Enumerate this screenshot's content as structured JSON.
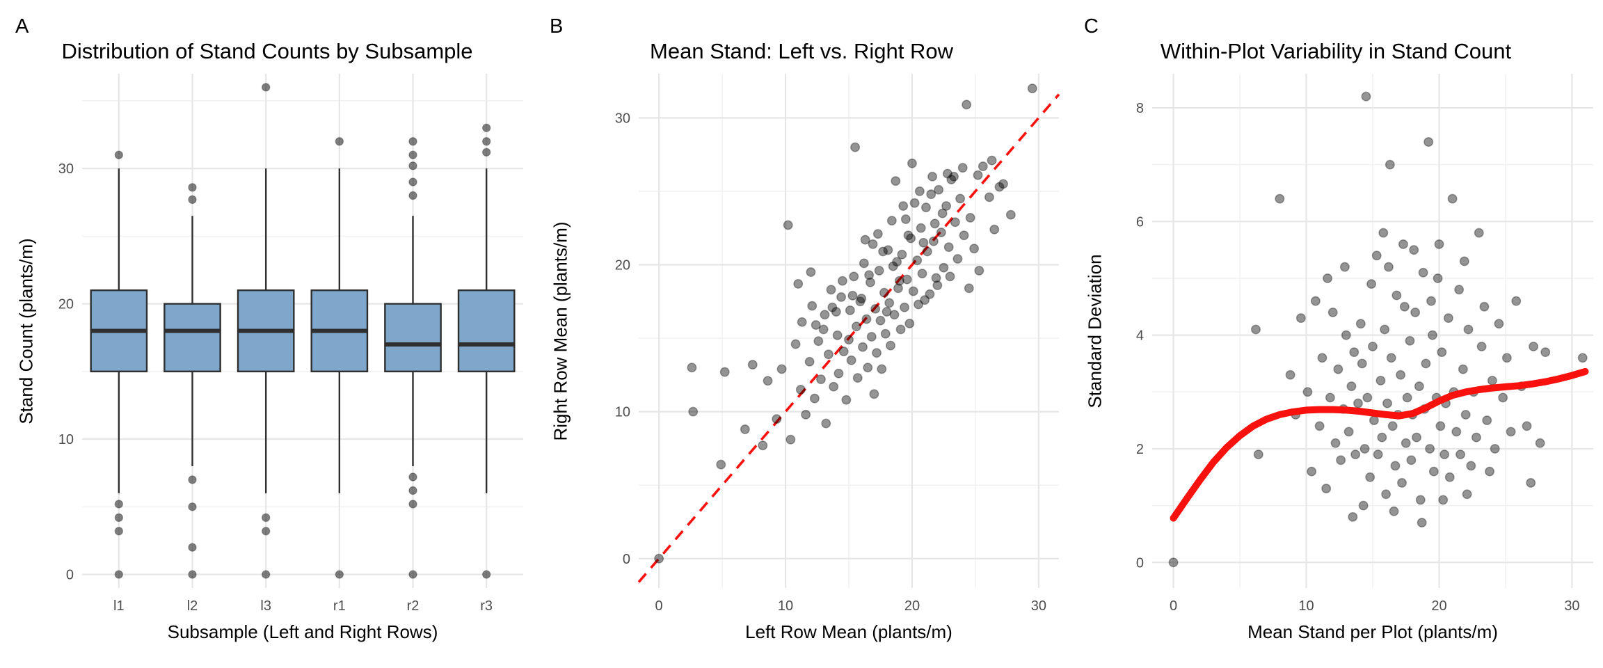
{
  "style": {
    "background": "#FFFFFF",
    "grid_major": "#E6E6E6",
    "grid_minor": "#F1F1F1",
    "tick_color": "#4D4D4D",
    "box_fill": "#7EA7CB",
    "box_border": "#2F2F2F",
    "point_color": "#000000",
    "accent_red": "#F8110D"
  },
  "chart_data": [
    {
      "type": "box",
      "tag": "A",
      "title": "Distribution of Stand Counts by Subsample",
      "xlabel": "Subsample (Left and Right Rows)",
      "ylabel": "Stand Count (plants/m)",
      "categories": [
        "l1",
        "l2",
        "l3",
        "r1",
        "r2",
        "r3"
      ],
      "stats": [
        {
          "whislo": 6,
          "q1": 15,
          "med": 18,
          "q3": 21,
          "whishi": 30,
          "fliers": [
            31,
            5.2,
            4.2,
            3.2,
            0
          ]
        },
        {
          "whislo": 8,
          "q1": 15,
          "med": 18,
          "q3": 20,
          "whishi": 26.5,
          "fliers": [
            28.6,
            27.7,
            7,
            5,
            2,
            0
          ]
        },
        {
          "whislo": 6,
          "q1": 15,
          "med": 18,
          "q3": 21,
          "whishi": 30,
          "fliers": [
            36,
            4.2,
            3.2,
            0
          ]
        },
        {
          "whislo": 6,
          "q1": 15,
          "med": 18,
          "q3": 21,
          "whishi": 30,
          "fliers": [
            32,
            0
          ]
        },
        {
          "whislo": 8,
          "q1": 15,
          "med": 17,
          "q3": 20,
          "whishi": 26.5,
          "fliers": [
            32,
            31,
            30.2,
            29,
            28,
            7.2,
            6.2,
            5.2,
            0
          ]
        },
        {
          "whislo": 6,
          "q1": 15,
          "med": 17,
          "q3": 21,
          "whishi": 30,
          "fliers": [
            33,
            32,
            31.2,
            0
          ]
        }
      ],
      "ydomain": [
        -1,
        37
      ],
      "xdomain": [
        0,
        6
      ],
      "yticks": [
        0,
        10,
        20,
        30
      ],
      "grid": {
        "ymajor": [
          0,
          10,
          20,
          30
        ],
        "yminor": [
          5,
          15,
          25,
          35
        ],
        "xmajor": [
          0.5,
          1.5,
          2.5,
          3.5,
          4.5,
          5.5
        ],
        "xminor": []
      },
      "box_width_frac": 0.76,
      "margins": {
        "l": 118,
        "r": 752,
        "t": 106,
        "b": 845
      }
    },
    {
      "type": "scatter",
      "tag": "B",
      "title": "Mean Stand: Left vs. Right Row",
      "xlabel": "Left Row Mean (plants/m)",
      "ylabel": "Right Row Mean (plants/m)",
      "xdomain": [
        -1.6,
        31.6
      ],
      "ydomain": [
        -2,
        33
      ],
      "xticks": [
        0,
        10,
        20,
        30
      ],
      "yticks": [
        0,
        10,
        20,
        30
      ],
      "grid": {
        "ymajor": [
          0,
          10,
          20,
          30
        ],
        "yminor": [
          5,
          15,
          25
        ],
        "xmajor": [
          0,
          10,
          20,
          30
        ],
        "xminor": [
          5,
          15,
          25
        ]
      },
      "refline": {
        "style": "dashed",
        "x1": -1.6,
        "y1": -1.6,
        "x2": 31.6,
        "y2": 31.6
      },
      "points": [
        [
          0,
          0
        ],
        [
          2.6,
          13
        ],
        [
          2.7,
          10
        ],
        [
          4.9,
          6.4
        ],
        [
          5.2,
          12.7
        ],
        [
          6.8,
          8.8
        ],
        [
          7.4,
          13.2
        ],
        [
          8.2,
          7.7
        ],
        [
          8.6,
          12.1
        ],
        [
          9.3,
          9.5
        ],
        [
          9.7,
          12.9
        ],
        [
          10.2,
          22.7
        ],
        [
          10.4,
          8.1
        ],
        [
          10.8,
          14.6
        ],
        [
          11,
          18.7
        ],
        [
          11.2,
          11.5
        ],
        [
          11.3,
          16.1
        ],
        [
          11.6,
          9.8
        ],
        [
          11.9,
          13.4
        ],
        [
          12,
          19.5
        ],
        [
          12.1,
          17.2
        ],
        [
          12.3,
          10.9
        ],
        [
          12.4,
          15.9
        ],
        [
          12.6,
          14.8
        ],
        [
          12.8,
          12.2
        ],
        [
          13,
          15.6
        ],
        [
          13.1,
          16.6
        ],
        [
          13.2,
          9.2
        ],
        [
          13.4,
          13.9
        ],
        [
          13.6,
          18.3
        ],
        [
          13.7,
          17.1
        ],
        [
          13.8,
          11.7
        ],
        [
          14,
          16.8
        ],
        [
          14.1,
          15.2
        ],
        [
          14.2,
          12.6
        ],
        [
          14.4,
          17.8
        ],
        [
          14.5,
          18.9
        ],
        [
          14.6,
          14.1
        ],
        [
          14.8,
          10.8
        ],
        [
          15,
          14.9
        ],
        [
          15.1,
          16.9
        ],
        [
          15.2,
          13.5
        ],
        [
          15.3,
          17.9
        ],
        [
          15.4,
          19.2
        ],
        [
          15.5,
          28
        ],
        [
          15.6,
          15.8
        ],
        [
          15.7,
          12.3
        ],
        [
          15.9,
          17.5
        ],
        [
          16,
          17.7
        ],
        [
          16.1,
          14.4
        ],
        [
          16.2,
          20.1
        ],
        [
          16.3,
          21.7
        ],
        [
          16.4,
          16.3
        ],
        [
          16.5,
          13
        ],
        [
          16.6,
          19.3
        ],
        [
          16.7,
          18.8
        ],
        [
          16.8,
          15.1
        ],
        [
          16.9,
          21.4
        ],
        [
          17,
          11.2
        ],
        [
          17.1,
          17
        ],
        [
          17.2,
          14
        ],
        [
          17.3,
          22.1
        ],
        [
          17.4,
          19.6
        ],
        [
          17.5,
          16.2
        ],
        [
          17.6,
          12.9
        ],
        [
          17.7,
          20.9
        ],
        [
          17.8,
          18.1
        ],
        [
          17.9,
          15.3
        ],
        [
          18,
          16.8
        ],
        [
          18.1,
          21
        ],
        [
          18.2,
          17.4
        ],
        [
          18.3,
          14.5
        ],
        [
          18.4,
          23
        ],
        [
          18.5,
          19.9
        ],
        [
          18.6,
          16.6
        ],
        [
          18.7,
          25.7
        ],
        [
          18.8,
          20.2
        ],
        [
          18.9,
          18.4
        ],
        [
          19,
          18.9
        ],
        [
          19.1,
          15.6
        ],
        [
          19.2,
          20.7
        ],
        [
          19.3,
          24
        ],
        [
          19.4,
          17.1
        ],
        [
          19.5,
          23.1
        ],
        [
          19.6,
          19
        ],
        [
          19.7,
          22
        ],
        [
          19.8,
          16
        ],
        [
          19.9,
          21.8
        ],
        [
          20,
          26.9
        ],
        [
          20.1,
          18.2
        ],
        [
          20.2,
          24.2
        ],
        [
          20.4,
          20.3
        ],
        [
          20.5,
          17.3
        ],
        [
          20.6,
          25
        ],
        [
          20.7,
          22.5
        ],
        [
          20.8,
          19.4
        ],
        [
          20.9,
          21.5
        ],
        [
          21,
          17.6
        ],
        [
          21.1,
          23.9
        ],
        [
          21.2,
          20.9
        ],
        [
          21.4,
          18
        ],
        [
          21.5,
          24.8
        ],
        [
          21.6,
          26
        ],
        [
          21.7,
          21.6
        ],
        [
          21.8,
          22.8
        ],
        [
          21.9,
          19.1
        ],
        [
          22,
          18.6
        ],
        [
          22.1,
          25.1
        ],
        [
          22.3,
          22.2
        ],
        [
          22.4,
          23.5
        ],
        [
          22.5,
          19.8
        ],
        [
          22.7,
          24
        ],
        [
          22.8,
          26.2
        ],
        [
          22.9,
          21.2
        ],
        [
          23,
          19.2
        ],
        [
          23.1,
          25.8
        ],
        [
          23.3,
          26
        ],
        [
          23.4,
          22.9
        ],
        [
          23.6,
          20.4
        ],
        [
          23.8,
          24.5
        ],
        [
          24,
          26.6
        ],
        [
          24.1,
          22
        ],
        [
          24.3,
          30.9
        ],
        [
          24.5,
          18.4
        ],
        [
          24.6,
          23.2
        ],
        [
          24.9,
          21.1
        ],
        [
          25.2,
          26.1
        ],
        [
          25.3,
          19.6
        ],
        [
          25.6,
          26.7
        ],
        [
          26.1,
          24.6
        ],
        [
          26.3,
          27.1
        ],
        [
          26.5,
          22.4
        ],
        [
          26.9,
          25.3
        ],
        [
          27.2,
          25.5
        ],
        [
          27.8,
          23.4
        ],
        [
          29.5,
          32
        ]
      ],
      "margins": {
        "l": 150,
        "r": 754,
        "t": 106,
        "b": 845
      }
    },
    {
      "type": "scatter",
      "tag": "C",
      "title": "Within-Plot Variability in Stand Count",
      "xlabel": "Mean Stand per Plot (plants/m)",
      "ylabel": "Standard Deviation",
      "xdomain": [
        -1.6,
        31.6
      ],
      "ydomain": [
        -0.45,
        8.6
      ],
      "xticks": [
        0,
        10,
        20,
        30
      ],
      "yticks": [
        0,
        2,
        4,
        6,
        8
      ],
      "grid": {
        "ymajor": [
          0,
          2,
          4,
          6,
          8
        ],
        "yminor": [
          1,
          3,
          5,
          7
        ],
        "xmajor": [
          0,
          10,
          20,
          30
        ],
        "xminor": [
          5,
          15,
          25
        ]
      },
      "smooth": [
        [
          0,
          0.78
        ],
        [
          1,
          1.12
        ],
        [
          2,
          1.45
        ],
        [
          3,
          1.76
        ],
        [
          4,
          2.02
        ],
        [
          5,
          2.23
        ],
        [
          6,
          2.4
        ],
        [
          7,
          2.52
        ],
        [
          8,
          2.6
        ],
        [
          9,
          2.65
        ],
        [
          10,
          2.68
        ],
        [
          11,
          2.69
        ],
        [
          12,
          2.69
        ],
        [
          13,
          2.68
        ],
        [
          14,
          2.66
        ],
        [
          15,
          2.63
        ],
        [
          16,
          2.6
        ],
        [
          17,
          2.58
        ],
        [
          18,
          2.62
        ],
        [
          19,
          2.72
        ],
        [
          20,
          2.84
        ],
        [
          21,
          2.94
        ],
        [
          22,
          3
        ],
        [
          23,
          3.04
        ],
        [
          24,
          3.07
        ],
        [
          25,
          3.09
        ],
        [
          26,
          3.11
        ],
        [
          27,
          3.14
        ],
        [
          28,
          3.18
        ],
        [
          29,
          3.23
        ],
        [
          30,
          3.29
        ],
        [
          31,
          3.36
        ]
      ],
      "points": [
        [
          0,
          0
        ],
        [
          6.2,
          4.1
        ],
        [
          6.4,
          1.9
        ],
        [
          8,
          6.4
        ],
        [
          8.8,
          3.3
        ],
        [
          9.2,
          2.6
        ],
        [
          9.6,
          4.3
        ],
        [
          10.1,
          3
        ],
        [
          10.4,
          1.6
        ],
        [
          10.7,
          4.6
        ],
        [
          11,
          2.4
        ],
        [
          11.2,
          3.6
        ],
        [
          11.5,
          1.3
        ],
        [
          11.6,
          5
        ],
        [
          11.8,
          2.9
        ],
        [
          12,
          4.4
        ],
        [
          12.2,
          2.1
        ],
        [
          12.4,
          3.4
        ],
        [
          12.6,
          1.8
        ],
        [
          12.8,
          2.7
        ],
        [
          12.9,
          5.2
        ],
        [
          13,
          4
        ],
        [
          13.2,
          2.3
        ],
        [
          13.4,
          3.1
        ],
        [
          13.5,
          0.8
        ],
        [
          13.6,
          3.7
        ],
        [
          13.7,
          1.9
        ],
        [
          13.9,
          2.8
        ],
        [
          14.1,
          4.2
        ],
        [
          14.2,
          3.5
        ],
        [
          14.3,
          1
        ],
        [
          14.4,
          2
        ],
        [
          14.5,
          8.2
        ],
        [
          14.6,
          2.9
        ],
        [
          14.8,
          1.5
        ],
        [
          14.9,
          4.9
        ],
        [
          15,
          3.8
        ],
        [
          15.1,
          2.5
        ],
        [
          15.3,
          5.4
        ],
        [
          15.4,
          1.9
        ],
        [
          15.6,
          3.2
        ],
        [
          15.7,
          2.2
        ],
        [
          15.8,
          5.8
        ],
        [
          15.9,
          4.1
        ],
        [
          16,
          1.2
        ],
        [
          16.1,
          2.8
        ],
        [
          16.2,
          5.2
        ],
        [
          16.3,
          7
        ],
        [
          16.4,
          3.6
        ],
        [
          16.5,
          2.4
        ],
        [
          16.6,
          0.9
        ],
        [
          16.7,
          1.7
        ],
        [
          16.8,
          4.7
        ],
        [
          16.9,
          2.6
        ],
        [
          17.1,
          3.3
        ],
        [
          17.2,
          1.4
        ],
        [
          17.3,
          5.6
        ],
        [
          17.4,
          4.5
        ],
        [
          17.5,
          2.1
        ],
        [
          17.6,
          2.9
        ],
        [
          17.8,
          3.9
        ],
        [
          17.9,
          1.8
        ],
        [
          18,
          2.6
        ],
        [
          18.1,
          5.5
        ],
        [
          18.2,
          4.4
        ],
        [
          18.3,
          2.2
        ],
        [
          18.5,
          3.1
        ],
        [
          18.6,
          1.1
        ],
        [
          18.7,
          0.7
        ],
        [
          18.8,
          5.1
        ],
        [
          18.9,
          2.7
        ],
        [
          19,
          3.5
        ],
        [
          19.2,
          7.4
        ],
        [
          19.3,
          2
        ],
        [
          19.4,
          4.6
        ],
        [
          19.5,
          4
        ],
        [
          19.6,
          1.6
        ],
        [
          19.8,
          2.9
        ],
        [
          19.9,
          5
        ],
        [
          20,
          5.6
        ],
        [
          20.1,
          2.4
        ],
        [
          20.2,
          3.7
        ],
        [
          20.3,
          1.1
        ],
        [
          20.4,
          1.9
        ],
        [
          20.5,
          2.8
        ],
        [
          20.7,
          4.3
        ],
        [
          20.8,
          1.5
        ],
        [
          21,
          6.4
        ],
        [
          21.1,
          3
        ],
        [
          21.3,
          2.3
        ],
        [
          21.5,
          4.8
        ],
        [
          21.6,
          1.9
        ],
        [
          21.8,
          3.4
        ],
        [
          21.9,
          5.3
        ],
        [
          22,
          2.6
        ],
        [
          22.1,
          1.2
        ],
        [
          22.2,
          4.1
        ],
        [
          22.4,
          1.7
        ],
        [
          22.6,
          3
        ],
        [
          22.8,
          2.2
        ],
        [
          23,
          5.8
        ],
        [
          23.2,
          3.8
        ],
        [
          23.4,
          4.5
        ],
        [
          23.6,
          2.5
        ],
        [
          23.8,
          1.6
        ],
        [
          24,
          3.2
        ],
        [
          24.2,
          2
        ],
        [
          24.5,
          4.2
        ],
        [
          24.8,
          2.9
        ],
        [
          25.1,
          3.6
        ],
        [
          25.4,
          2.3
        ],
        [
          25.8,
          4.6
        ],
        [
          26.2,
          3.1
        ],
        [
          26.6,
          2.4
        ],
        [
          26.9,
          1.4
        ],
        [
          27.1,
          3.8
        ],
        [
          27.6,
          2.1
        ],
        [
          28,
          3.7
        ],
        [
          30.8,
          3.6
        ]
      ],
      "margins": {
        "l": 120,
        "r": 754,
        "t": 106,
        "b": 845
      }
    }
  ]
}
